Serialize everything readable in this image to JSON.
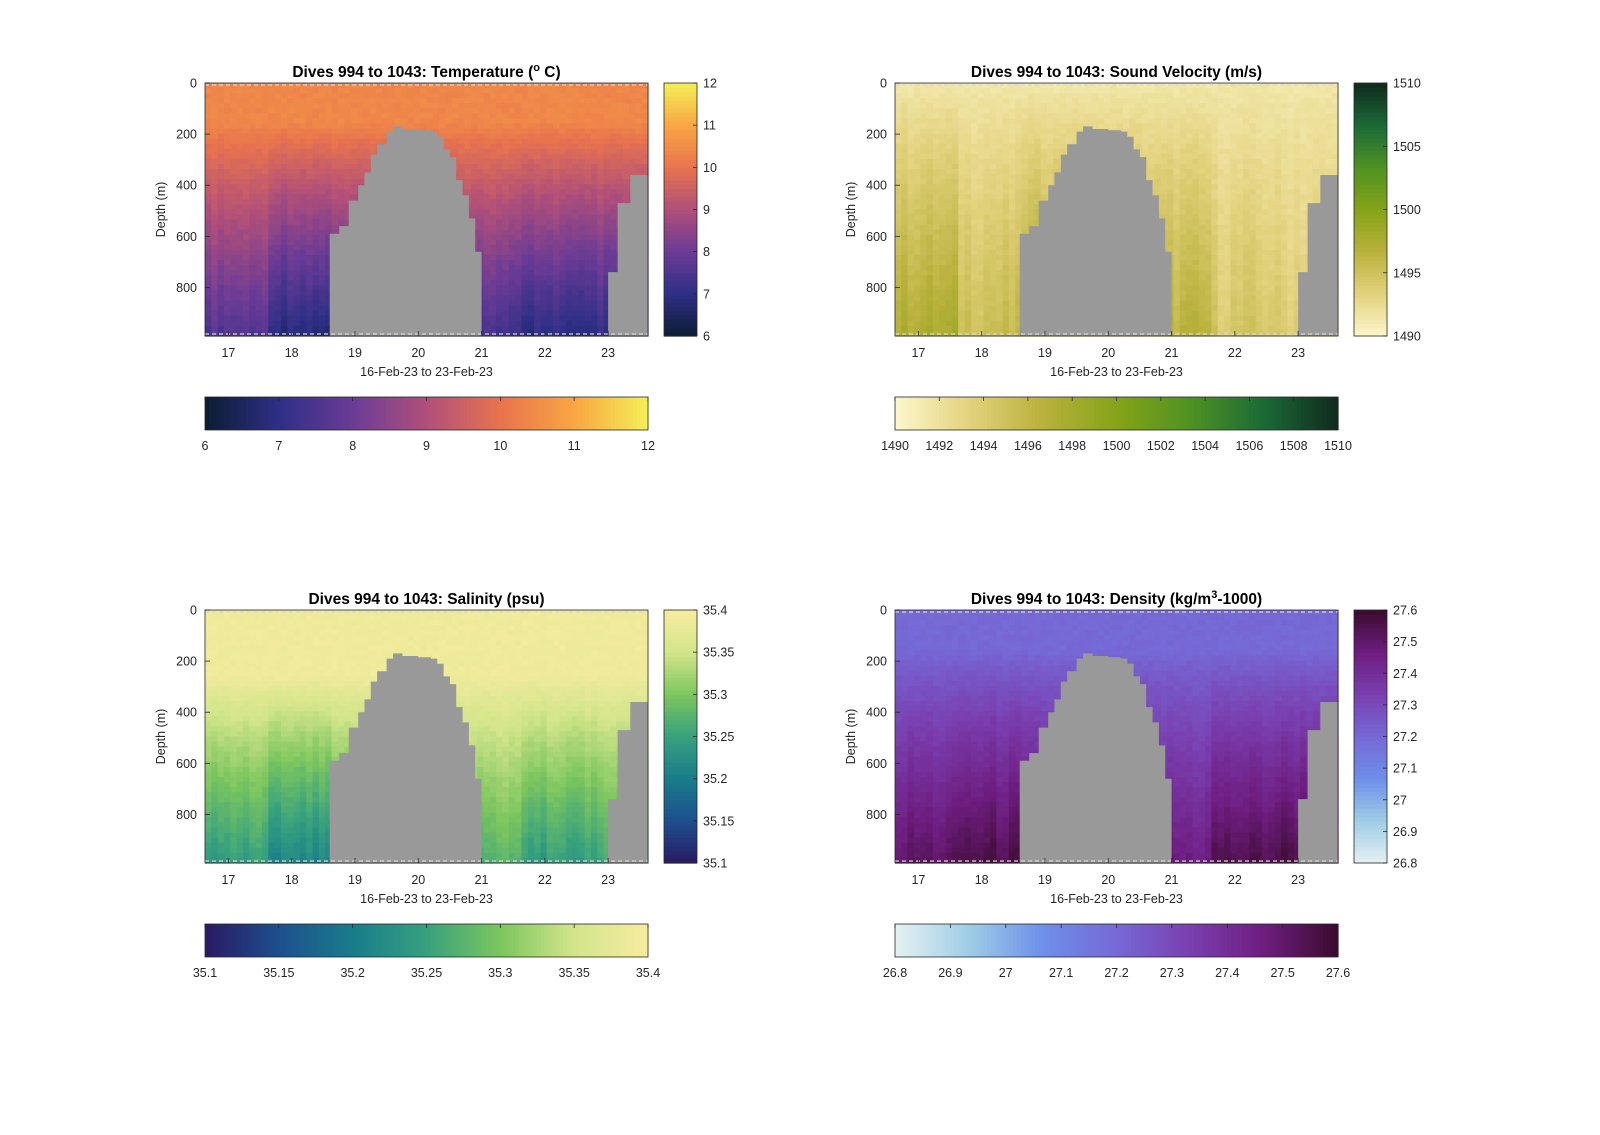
{
  "figure": {
    "x_axis_label": "16-Feb-23 to 23-Feb-23",
    "y_axis_label": "Depth (m)"
  },
  "chart_data": [
    {
      "type": "heatmap",
      "title": "Dives 994 to 1043: Temperature (° C)",
      "title_parts": [
        "Dives 994 to 1043: Temperature (",
        "o",
        " C)"
      ],
      "xlabel": "16-Feb-23 to 23-Feb-23",
      "ylabel": "Depth (m)",
      "x_ticks": [
        "17",
        "18",
        "19",
        "20",
        "21",
        "22",
        "23"
      ],
      "y_ticks": [
        "0",
        "200",
        "400",
        "600",
        "800"
      ],
      "ylim": [
        0,
        990
      ],
      "clim": [
        6,
        12
      ],
      "colorbar_ticks": [
        "6",
        "7",
        "8",
        "9",
        "10",
        "11",
        "12"
      ],
      "bottom_colorbar_ticks": [
        "6",
        "7",
        "8",
        "9",
        "10",
        "11",
        "12"
      ],
      "colormap": [
        "#0c1d33",
        "#2e2f86",
        "#6a3b96",
        "#b04f7a",
        "#e8734e",
        "#f9a643",
        "#f3ef57"
      ],
      "surface_value": 10.4,
      "deep_values": [
        7.6,
        6.7,
        6.9,
        7.0,
        7.3,
        6.9,
        7.0
      ],
      "profile": {
        "mixed_layer_depth": 150,
        "spread_depth": 600
      },
      "no_data_color": "#999999"
    },
    {
      "type": "heatmap",
      "title": "Dives 994 to 1043: Sound Velocity (m/s)",
      "title_parts": [
        "Dives 994 to 1043: Sound Velocity (m/s)",
        "",
        ""
      ],
      "xlabel": "16-Feb-23 to 23-Feb-23",
      "ylabel": "Depth (m)",
      "x_ticks": [
        "17",
        "18",
        "19",
        "20",
        "21",
        "22",
        "23"
      ],
      "y_ticks": [
        "0",
        "200",
        "400",
        "600",
        "800"
      ],
      "ylim": [
        0,
        990
      ],
      "clim": [
        1490,
        1510
      ],
      "colorbar_ticks": [
        "1490",
        "1495",
        "1500",
        "1505",
        "1510"
      ],
      "bottom_colorbar_ticks": [
        "1490",
        "1492",
        "1494",
        "1496",
        "1498",
        "1500",
        "1502",
        "1504",
        "1506",
        "1508",
        "1510"
      ],
      "colormap": [
        "#fdf7cc",
        "#e3d27e",
        "#b9b13c",
        "#86a318",
        "#4f9222",
        "#1a6a37",
        "#112a1d"
      ],
      "surface_value": 1491.5,
      "deep_values": [
        1497.5,
        1495.5,
        1497.5,
        1497.0,
        1496.5,
        1494.5,
        1494.0
      ],
      "profile": {
        "mixed_layer_depth": 0,
        "spread_depth": 500
      },
      "no_data_color": "#999999"
    },
    {
      "type": "heatmap",
      "title": "Dives 994 to 1043: Salinity (psu)",
      "title_parts": [
        "Dives 994 to 1043: Salinity (psu)",
        "",
        ""
      ],
      "xlabel": "16-Feb-23 to 23-Feb-23",
      "ylabel": "Depth (m)",
      "x_ticks": [
        "17",
        "18",
        "19",
        "20",
        "21",
        "22",
        "23"
      ],
      "y_ticks": [
        "0",
        "200",
        "400",
        "600",
        "800"
      ],
      "ylim": [
        0,
        990
      ],
      "clim": [
        35.1,
        35.4
      ],
      "colorbar_ticks": [
        "35.1",
        "35.15",
        "35.2",
        "35.25",
        "35.3",
        "35.35",
        "35.4"
      ],
      "bottom_colorbar_ticks": [
        "35.1",
        "35.15",
        "35.2",
        "35.25",
        "35.3",
        "35.35",
        "35.4"
      ],
      "colormap": [
        "#2a1a63",
        "#1d4f8e",
        "#197c8b",
        "#37a17e",
        "#7cc65e",
        "#d2e58a",
        "#f7ec9f"
      ],
      "surface_value": 35.39,
      "deep_values": [
        35.24,
        35.21,
        35.24,
        35.25,
        35.27,
        35.24,
        35.25
      ],
      "profile": {
        "mixed_layer_depth": 250,
        "spread_depth": 600
      },
      "no_data_color": "#999999"
    },
    {
      "type": "heatmap",
      "title": "Dives 994 to 1043: Density (kg/m³-1000)",
      "title_parts": [
        "Dives 994 to 1043: Density (kg/m",
        "3",
        "-1000)"
      ],
      "xlabel": "16-Feb-23 to 23-Feb-23",
      "ylabel": "Depth (m)",
      "x_ticks": [
        "17",
        "18",
        "19",
        "20",
        "21",
        "22",
        "23"
      ],
      "y_ticks": [
        "0",
        "200",
        "400",
        "600",
        "800"
      ],
      "ylim": [
        0,
        990
      ],
      "clim": [
        26.8,
        27.6
      ],
      "colorbar_ticks": [
        "26.8",
        "26.9",
        "27",
        "27.1",
        "27.2",
        "27.3",
        "27.4",
        "27.5",
        "27.6"
      ],
      "bottom_colorbar_ticks": [
        "26.8",
        "26.9",
        "27",
        "27.1",
        "27.2",
        "27.3",
        "27.4",
        "27.5",
        "27.6"
      ],
      "colormap": [
        "#e5f1f2",
        "#9fcde6",
        "#6d8fe9",
        "#7669d6",
        "#7a3fb0",
        "#6e1d7f",
        "#3b0b2e"
      ],
      "surface_value": 27.2,
      "deep_values": [
        27.52,
        27.56,
        27.52,
        27.5,
        27.47,
        27.55,
        27.57
      ],
      "profile": {
        "mixed_layer_depth": 150,
        "spread_depth": 600
      },
      "no_data_color": "#999999"
    }
  ]
}
